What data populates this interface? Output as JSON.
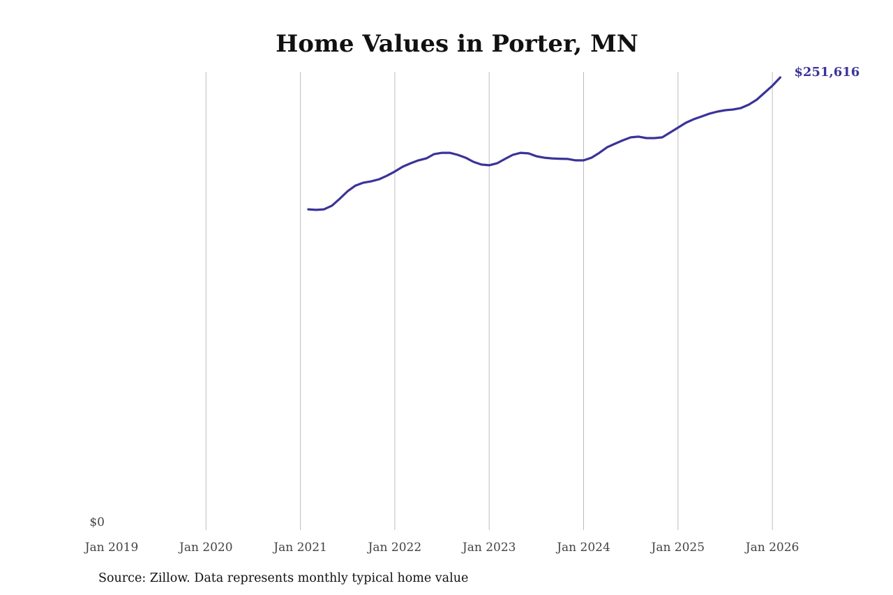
{
  "chart_data": {
    "type": "line",
    "title": "Home Values in Porter, MN",
    "source": "Source: Zillow. Data represents monthly typical home value",
    "xlabel": "",
    "ylabel": "",
    "x_ticks": [
      "Jan 2019",
      "Jan 2020",
      "Jan 2021",
      "Jan 2022",
      "Jan 2023",
      "Jan 2024",
      "Jan 2025",
      "Jan 2026"
    ],
    "y_ticks": [
      "$0"
    ],
    "xlim": [
      "2019-01",
      "2026-02"
    ],
    "ylim": [
      0,
      251616
    ],
    "grid": "vertical",
    "line_color": "#3a3399",
    "end_label": "$251,616",
    "series": [
      {
        "x": [
          "2021-02",
          "2021-03",
          "2021-04",
          "2021-05",
          "2021-06",
          "2021-07",
          "2021-08",
          "2021-09",
          "2021-10",
          "2021-11",
          "2021-12",
          "2022-01",
          "2022-02",
          "2022-03",
          "2022-04",
          "2022-05",
          "2022-06",
          "2022-07",
          "2022-08",
          "2022-09",
          "2022-10",
          "2022-11",
          "2022-12",
          "2023-01",
          "2023-02",
          "2023-03",
          "2023-04",
          "2023-05",
          "2023-06",
          "2023-07",
          "2023-08",
          "2023-09",
          "2023-10",
          "2023-11",
          "2023-12",
          "2024-01",
          "2024-02",
          "2024-03",
          "2024-04",
          "2024-05",
          "2024-06",
          "2024-07",
          "2024-08",
          "2024-09",
          "2024-10",
          "2024-11",
          "2024-12",
          "2025-01",
          "2025-02",
          "2025-03",
          "2025-04",
          "2025-05",
          "2025-06",
          "2025-07",
          "2025-08",
          "2025-09",
          "2025-10",
          "2025-11",
          "2025-12",
          "2026-01",
          "2026-02"
        ],
        "values": [
          178300,
          178000,
          178300,
          180300,
          184200,
          188400,
          191500,
          193100,
          193900,
          195000,
          197000,
          199300,
          202000,
          203900,
          205500,
          206600,
          209000,
          209700,
          209700,
          208600,
          207000,
          204700,
          203200,
          202800,
          203900,
          206300,
          208600,
          209700,
          209400,
          207800,
          207000,
          206600,
          206400,
          206300,
          205500,
          205500,
          207000,
          209700,
          212800,
          214800,
          216700,
          218300,
          218700,
          217900,
          217900,
          218300,
          221000,
          223700,
          226400,
          228400,
          229900,
          231500,
          232600,
          233400,
          233800,
          234600,
          236500,
          239200,
          243100,
          247000,
          251616
        ]
      }
    ]
  }
}
